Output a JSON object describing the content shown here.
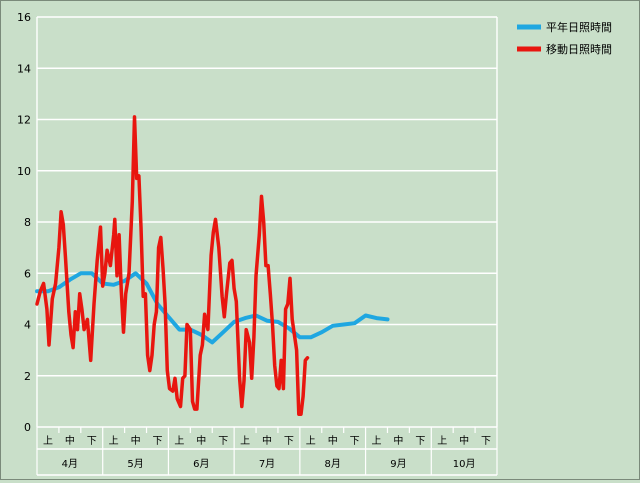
{
  "chart_data": {
    "type": "line",
    "ylim": [
      0,
      16
    ],
    "yticks": [
      0,
      2,
      4,
      6,
      8,
      10,
      12,
      14,
      16
    ],
    "grid": true,
    "legend_position": "top-right",
    "months": [
      "4月",
      "5月",
      "6月",
      "7月",
      "8月",
      "9月",
      "10月"
    ],
    "decade_labels": [
      "上",
      "中",
      "下"
    ],
    "x_domain": [
      0,
      21
    ],
    "series": [
      {
        "name": "平年日照時間",
        "color": "#1fa7e1",
        "points": [
          [
            0,
            5.3
          ],
          [
            0.5,
            5.3
          ],
          [
            1,
            5.45
          ],
          [
            1.5,
            5.75
          ],
          [
            2,
            6.0
          ],
          [
            2.5,
            6.0
          ],
          [
            3,
            5.6
          ],
          [
            3.5,
            5.55
          ],
          [
            4,
            5.7
          ],
          [
            4.5,
            6.0
          ],
          [
            5,
            5.6
          ],
          [
            5.5,
            4.8
          ],
          [
            6,
            4.3
          ],
          [
            6.5,
            3.8
          ],
          [
            7,
            3.8
          ],
          [
            7.5,
            3.6
          ],
          [
            8,
            3.3
          ],
          [
            8.5,
            3.7
          ],
          [
            9,
            4.1
          ],
          [
            9.5,
            4.25
          ],
          [
            10,
            4.35
          ],
          [
            10.5,
            4.15
          ],
          [
            11,
            4.1
          ],
          [
            11.5,
            3.85
          ],
          [
            12,
            3.5
          ],
          [
            12.5,
            3.5
          ],
          [
            13,
            3.7
          ],
          [
            13.5,
            3.95
          ],
          [
            14,
            4.0
          ],
          [
            14.5,
            4.05
          ],
          [
            15,
            4.35
          ],
          [
            15.5,
            4.25
          ],
          [
            16,
            4.2
          ]
        ]
      },
      {
        "name": "移動日照時間",
        "color": "#e8160f",
        "points": [
          [
            0,
            4.8
          ],
          [
            0.15,
            5.3
          ],
          [
            0.3,
            5.6
          ],
          [
            0.45,
            4.6
          ],
          [
            0.55,
            3.2
          ],
          [
            0.7,
            5.0
          ],
          [
            0.85,
            5.6
          ],
          [
            1.0,
            7.0
          ],
          [
            1.1,
            8.4
          ],
          [
            1.2,
            7.9
          ],
          [
            1.3,
            6.6
          ],
          [
            1.45,
            4.5
          ],
          [
            1.55,
            3.6
          ],
          [
            1.65,
            3.1
          ],
          [
            1.75,
            4.5
          ],
          [
            1.85,
            3.8
          ],
          [
            1.95,
            5.2
          ],
          [
            2.05,
            4.6
          ],
          [
            2.15,
            3.8
          ],
          [
            2.3,
            4.2
          ],
          [
            2.45,
            2.6
          ],
          [
            2.6,
            4.8
          ],
          [
            2.75,
            6.5
          ],
          [
            2.9,
            7.8
          ],
          [
            3.0,
            5.5
          ],
          [
            3.1,
            6.0
          ],
          [
            3.2,
            6.9
          ],
          [
            3.35,
            6.3
          ],
          [
            3.5,
            7.5
          ],
          [
            3.55,
            8.1
          ],
          [
            3.65,
            5.9
          ],
          [
            3.75,
            7.5
          ],
          [
            3.85,
            5.3
          ],
          [
            3.95,
            3.7
          ],
          [
            4.05,
            5.2
          ],
          [
            4.2,
            6.0
          ],
          [
            4.35,
            8.8
          ],
          [
            4.45,
            12.1
          ],
          [
            4.55,
            9.7
          ],
          [
            4.65,
            9.8
          ],
          [
            4.75,
            7.8
          ],
          [
            4.85,
            5.1
          ],
          [
            4.95,
            5.2
          ],
          [
            5.05,
            2.8
          ],
          [
            5.15,
            2.2
          ],
          [
            5.25,
            2.8
          ],
          [
            5.35,
            4.0
          ],
          [
            5.45,
            4.5
          ],
          [
            5.55,
            7.0
          ],
          [
            5.65,
            7.4
          ],
          [
            5.75,
            6.2
          ],
          [
            5.85,
            4.8
          ],
          [
            5.95,
            2.2
          ],
          [
            6.05,
            1.5
          ],
          [
            6.2,
            1.4
          ],
          [
            6.3,
            1.9
          ],
          [
            6.4,
            1.1
          ],
          [
            6.55,
            0.8
          ],
          [
            6.65,
            1.9
          ],
          [
            6.75,
            2.0
          ],
          [
            6.85,
            4.0
          ],
          [
            7.0,
            3.8
          ],
          [
            7.1,
            1.0
          ],
          [
            7.2,
            0.7
          ],
          [
            7.3,
            0.7
          ],
          [
            7.45,
            2.8
          ],
          [
            7.55,
            3.2
          ],
          [
            7.65,
            4.4
          ],
          [
            7.8,
            3.8
          ],
          [
            7.95,
            6.7
          ],
          [
            8.05,
            7.6
          ],
          [
            8.15,
            8.1
          ],
          [
            8.3,
            7.0
          ],
          [
            8.45,
            5.1
          ],
          [
            8.55,
            4.3
          ],
          [
            8.65,
            5.2
          ],
          [
            8.8,
            6.4
          ],
          [
            8.9,
            6.5
          ],
          [
            9.0,
            5.4
          ],
          [
            9.1,
            4.9
          ],
          [
            9.25,
            1.9
          ],
          [
            9.35,
            0.8
          ],
          [
            9.45,
            1.8
          ],
          [
            9.55,
            3.8
          ],
          [
            9.7,
            3.3
          ],
          [
            9.8,
            1.9
          ],
          [
            9.9,
            3.5
          ],
          [
            10.0,
            5.9
          ],
          [
            10.15,
            7.5
          ],
          [
            10.25,
            9.0
          ],
          [
            10.35,
            8.0
          ],
          [
            10.45,
            6.3
          ],
          [
            10.55,
            6.3
          ],
          [
            10.65,
            5.2
          ],
          [
            10.75,
            4.0
          ],
          [
            10.85,
            2.4
          ],
          [
            10.95,
            1.6
          ],
          [
            11.05,
            1.5
          ],
          [
            11.15,
            2.6
          ],
          [
            11.25,
            1.5
          ],
          [
            11.35,
            4.6
          ],
          [
            11.45,
            4.8
          ],
          [
            11.55,
            5.8
          ],
          [
            11.65,
            4.2
          ],
          [
            11.75,
            3.6
          ],
          [
            11.85,
            3.0
          ],
          [
            11.95,
            0.5
          ],
          [
            12.05,
            0.5
          ],
          [
            12.15,
            1.2
          ],
          [
            12.25,
            2.6
          ],
          [
            12.35,
            2.7
          ]
        ]
      }
    ]
  }
}
